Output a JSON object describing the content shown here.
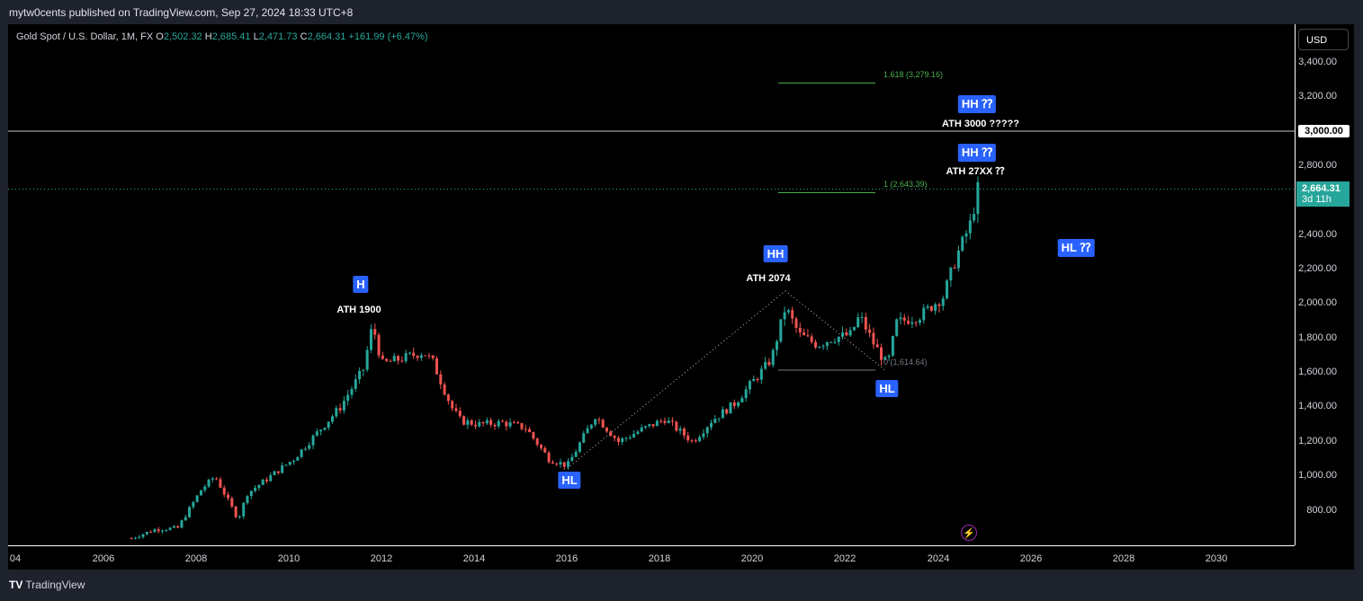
{
  "header": {
    "published": "mytw0cents published on TradingView.com, Sep 27, 2024 18:33 UTC+8"
  },
  "legend": {
    "symbol": "Gold Spot / U.S. Dollar, 1M, FX",
    "o_label": "O",
    "o": "2,502.32",
    "h_label": "H",
    "h": "2,685.41",
    "l_label": "L",
    "l": "2,471.73",
    "c_label": "C",
    "c": "2,664.31",
    "change": "+161.99 (+6.47%)"
  },
  "price_axis": {
    "currency": "USD",
    "ticks": [
      "3,400.00",
      "3,200.00",
      "2,800.00",
      "2,400.00",
      "2,200.00",
      "2,000.00",
      "1,800.00",
      "1,600.00",
      "1,400.00",
      "1,200.00",
      "1,000.00",
      "800.00"
    ],
    "highlight": "3,000.00",
    "last_price": "2,664.31",
    "countdown": "3d 11h"
  },
  "time_axis": {
    "ticks": [
      "04",
      "2006",
      "2008",
      "2010",
      "2012",
      "2014",
      "2016",
      "2018",
      "2020",
      "2022",
      "2024",
      "2026",
      "2028",
      "2030"
    ]
  },
  "annotations": {
    "h_badge": "H",
    "ath1900": "ATH 1900",
    "hl_badge_2015": "HL",
    "hh_badge_2020": "HH",
    "ath2074": "ATH 2074",
    "hl_badge_2022": "HL",
    "hh_badge_a": "HH ⁇",
    "ath3000": "ATH 3000 ?????",
    "hh_badge_b": "HH ⁇",
    "ath27xx": "ATH 27XX ⁇",
    "hl_badge_future": "HL ⁇"
  },
  "fib": {
    "level_1618": "1.618 (3,279.16)",
    "level_1": "1 (2,643.39)",
    "level_0": "0 (1,614.64)"
  },
  "footer": {
    "logo": "TV",
    "brand": "TradingView"
  },
  "colors": {
    "up": "#26a69a",
    "down": "#ef5350",
    "badge": "#2962ff",
    "fib": "#4caf50"
  },
  "chart_data": {
    "type": "candlestick",
    "title": "Gold Spot / U.S. Dollar, 1M, FX",
    "ylim": [
      650,
      3500
    ],
    "xlim": [
      2004,
      2031.6
    ],
    "series": [
      {
        "name": "",
        "x": [
          2006.5,
          2007.0,
          2007.5,
          2008.0,
          2008.3,
          2008.8,
          2009.0,
          2009.5,
          2010.0,
          2010.5,
          2011.0,
          2011.5,
          2011.7,
          2011.9,
          2012.3,
          2012.8,
          2013.0,
          2013.4,
          2013.6,
          2014.0,
          2014.5,
          2015.0,
          2015.5,
          2015.9,
          2016.5,
          2017.0,
          2017.5,
          2018.0,
          2018.6,
          2019.0,
          2019.5,
          2020.0,
          2020.3,
          2020.6,
          2020.9,
          2021.3,
          2021.6,
          2022.0,
          2022.2,
          2022.5,
          2022.8,
          2023.0,
          2023.5,
          2024.0,
          2024.3,
          2024.6,
          2024.75
        ],
        "close": [
          640,
          690,
          700,
          920,
          1000,
          750,
          900,
          1000,
          1100,
          1250,
          1400,
          1620,
          1880,
          1650,
          1680,
          1720,
          1660,
          1400,
          1320,
          1300,
          1310,
          1280,
          1100,
          1060,
          1350,
          1200,
          1270,
          1330,
          1200,
          1320,
          1420,
          1580,
          1680,
          1980,
          1820,
          1760,
          1800,
          1820,
          1930,
          1770,
          1640,
          1890,
          1930,
          2040,
          2280,
          2470,
          2664
        ]
      }
    ],
    "ohlc_last": {
      "open": 2502.32,
      "high": 2685.41,
      "low": 2471.73,
      "close": 2664.31,
      "change": 161.99,
      "change_pct": 6.47
    },
    "hlines": [
      3000,
      2664.31
    ],
    "fib_levels": [
      {
        "ratio": 1.618,
        "price": 3279.16
      },
      {
        "ratio": 1,
        "price": 2643.39
      },
      {
        "ratio": 0,
        "price": 1614.64
      }
    ],
    "trendline_points": [
      {
        "x": 2015.9,
        "y": 1046
      },
      {
        "x": 2020.6,
        "y": 2074
      },
      {
        "x": 2022.75,
        "y": 1615
      }
    ]
  }
}
